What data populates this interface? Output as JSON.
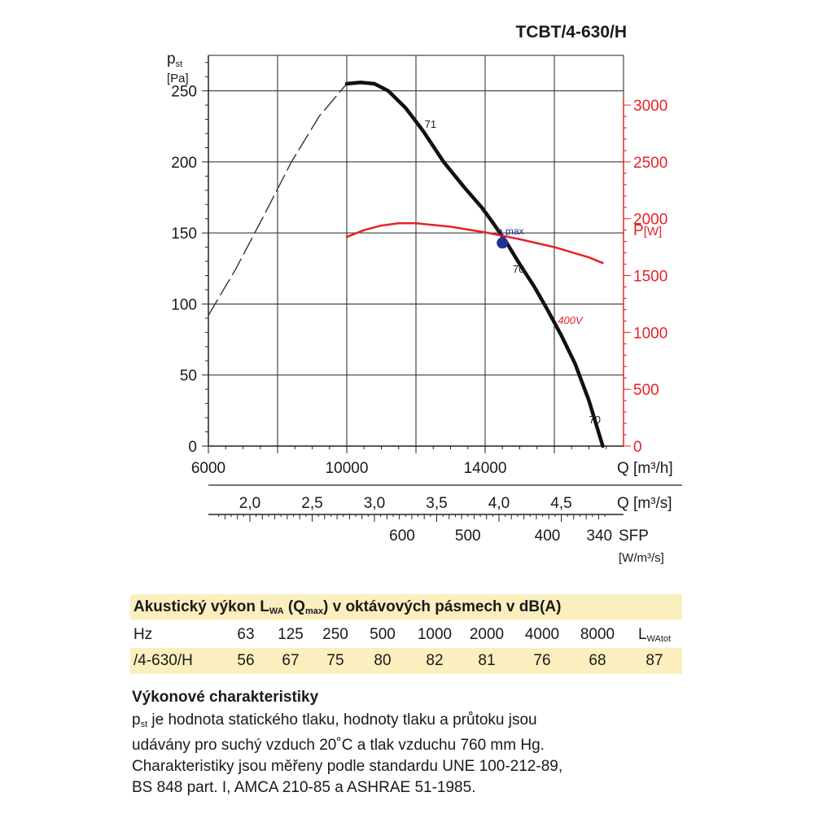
{
  "chart_data": {
    "type": "line",
    "title": "TCBT/4-630/H",
    "y_left": {
      "label_main": "p",
      "label_sub": "st",
      "unit": "[Pa]",
      "ticks": [
        0,
        50,
        100,
        150,
        200,
        250
      ],
      "range": [
        0,
        275
      ]
    },
    "y_right": {
      "label_main": "P",
      "unit": "[W]",
      "ticks": [
        0,
        500,
        1000,
        1500,
        2000,
        2500,
        3000
      ],
      "range": [
        0,
        3437.5
      ],
      "color": "#e8202a"
    },
    "x_main": {
      "label": "Q [m³/h]",
      "ticks": [
        6000,
        10000,
        14000
      ],
      "range": [
        6000,
        18000
      ]
    },
    "x_secondary": {
      "label": "Q [m³/s]",
      "ticks": [
        "2,0",
        "2,5",
        "3,0",
        "3,5",
        "4,0",
        "4,5"
      ],
      "values_m3h": [
        7200,
        9000,
        10800,
        12600,
        14400,
        16200
      ]
    },
    "x_sfp": {
      "label": "SFP",
      "unit": "[W/m³/s]",
      "ticks": [
        "600",
        "500",
        "400",
        "340"
      ],
      "values_m3h": [
        11600,
        13500,
        15800,
        17300
      ]
    },
    "grid": true,
    "series": [
      {
        "role": "pressure-dashed",
        "style": "dashed",
        "color": "#333333",
        "x": [
          6000,
          6800,
          7600,
          8400,
          9200,
          10000
        ],
        "y": [
          92,
          125,
          162,
          200,
          232,
          255
        ]
      },
      {
        "role": "pressure",
        "style": "solid",
        "color": "#111111",
        "x": [
          10000,
          10400,
          10800,
          11200,
          11700,
          12200,
          12800,
          13400,
          13900,
          14200,
          14600,
          15000,
          15400,
          15800,
          16200,
          16600,
          17000,
          17400
        ],
        "y": [
          255,
          256,
          255,
          250,
          238,
          222,
          200,
          182,
          168,
          158,
          144,
          128,
          113,
          96,
          78,
          58,
          32,
          0
        ]
      },
      {
        "role": "power",
        "style": "solid",
        "color": "#e8202a",
        "axis": "right",
        "x": [
          10000,
          10500,
          11000,
          11500,
          12000,
          13000,
          14000,
          15000,
          16000,
          17000,
          17400
        ],
        "y": [
          1840,
          1900,
          1940,
          1960,
          1960,
          1930,
          1880,
          1820,
          1750,
          1660,
          1610
        ]
      }
    ],
    "annotations": [
      {
        "text": "71",
        "x": 12250,
        "y": 224
      },
      {
        "text": "η max",
        "x": 14350,
        "y": 149
      },
      {
        "text": "70",
        "x": 14800,
        "y": 122
      },
      {
        "text": "400V",
        "x": 16100,
        "y": 86
      },
      {
        "text": "70",
        "x": 17000,
        "y": 16
      }
    ],
    "points": [
      {
        "label": "η max",
        "x": 14500,
        "y": 143,
        "color": "#1e3296"
      }
    ]
  },
  "table": {
    "title_main": "Akustický výkon L",
    "title_sub1": "WA",
    "title_mid": " (Q",
    "title_sub2": "max",
    "title_end": ") v oktávových pásmech v dB(A)",
    "header": [
      "Hz",
      "63",
      "125",
      "250",
      "500",
      "1000",
      "2000",
      "4000",
      "8000"
    ],
    "header_last_main": "L",
    "header_last_sub": "WAtot",
    "row": [
      "/4-630/H",
      "56",
      "67",
      "75",
      "80",
      "82",
      "81",
      "76",
      "68",
      "87"
    ]
  },
  "info": {
    "heading": "Výkonové charakteristiky",
    "p_main": "p",
    "p_sub": "st",
    "line1_rest": " je hodnota statického tlaku, hodnoty tlaku a průtoku jsou",
    "line2": "udávány pro suchý vzduch 20˚C a tlak vzduchu 760 mm Hg.",
    "line3": "Charakteristiky jsou měřeny podle standardu UNE 100-212-89,",
    "line4": "BS 848 part. I, AMCA 210-85 a ASHRAE 51-1985."
  }
}
